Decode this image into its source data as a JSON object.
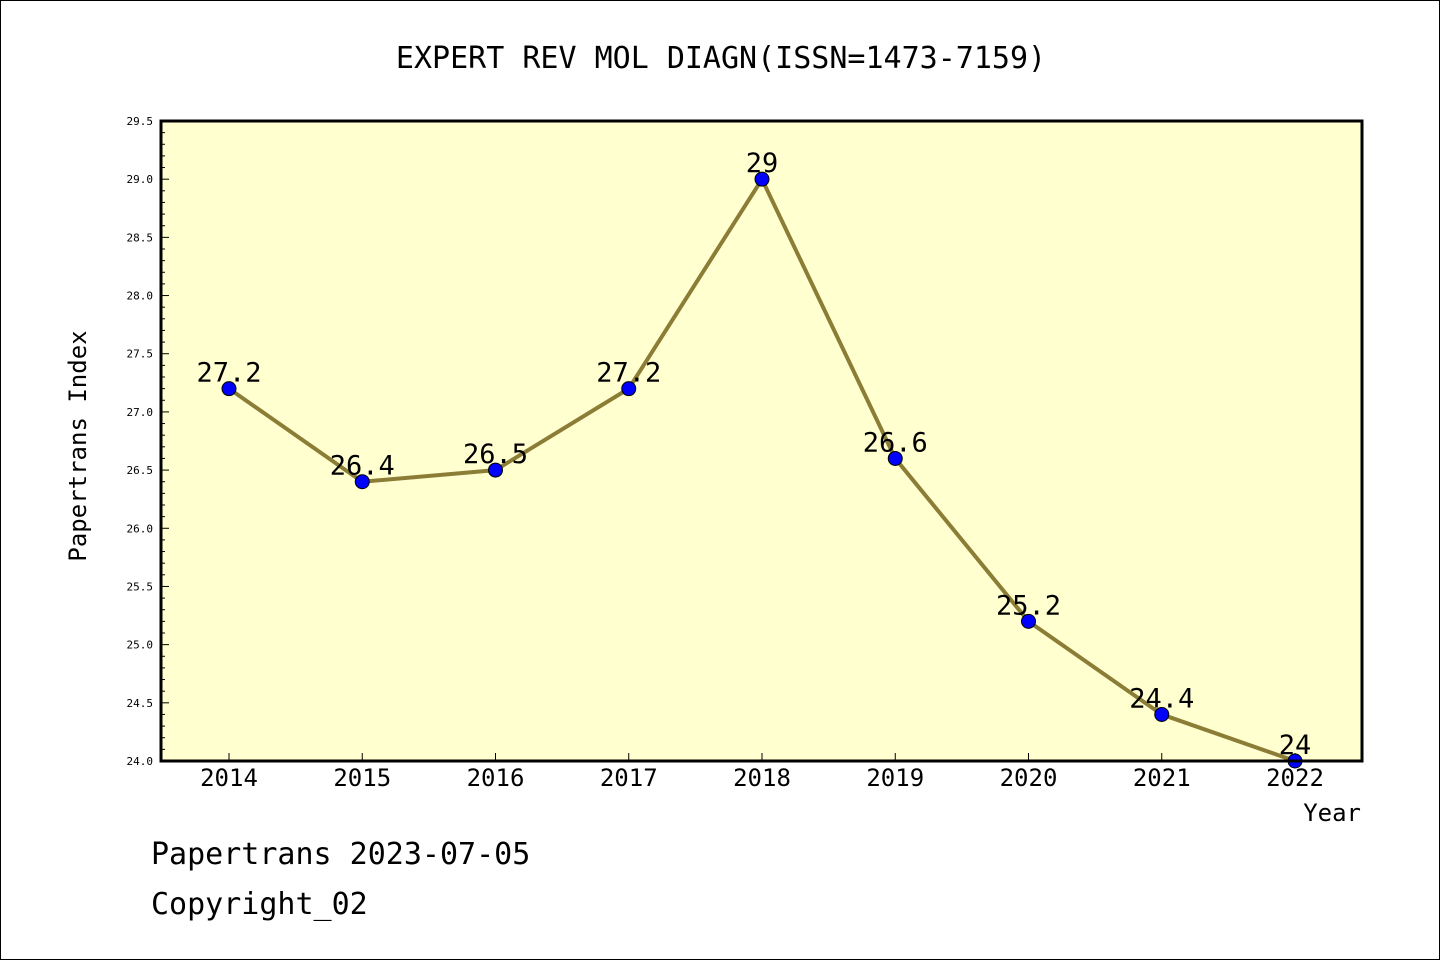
{
  "chart_data": {
    "type": "line",
    "title": "EXPERT REV MOL DIAGN(ISSN=1473-7159)",
    "xlabel": "Year",
    "ylabel": "Papertrans Index",
    "categories": [
      "2014",
      "2015",
      "2016",
      "2017",
      "2018",
      "2019",
      "2020",
      "2021",
      "2022"
    ],
    "values": [
      27.2,
      26.4,
      26.5,
      27.2,
      29,
      26.6,
      25.2,
      24.4,
      24
    ],
    "point_labels": [
      "27.2",
      "26.4",
      "26.5",
      "27.2",
      "29",
      "26.6",
      "25.2",
      "24.4",
      "24"
    ],
    "ylim": [
      24.0,
      29.5
    ],
    "yticks": [
      "24.0",
      "24.5",
      "25.0",
      "25.5",
      "26.0",
      "26.5",
      "27.0",
      "27.5",
      "28.0",
      "28.5",
      "29.0",
      "29.5"
    ],
    "grid": false,
    "legend": "none",
    "colors": {
      "plot_background": "#ffffd0",
      "line": "#8b7d35",
      "marker": "#0000ff"
    }
  },
  "footer": {
    "date_line": "Papertrans 2023-07-05",
    "copyright_line": "Copyright_02"
  }
}
